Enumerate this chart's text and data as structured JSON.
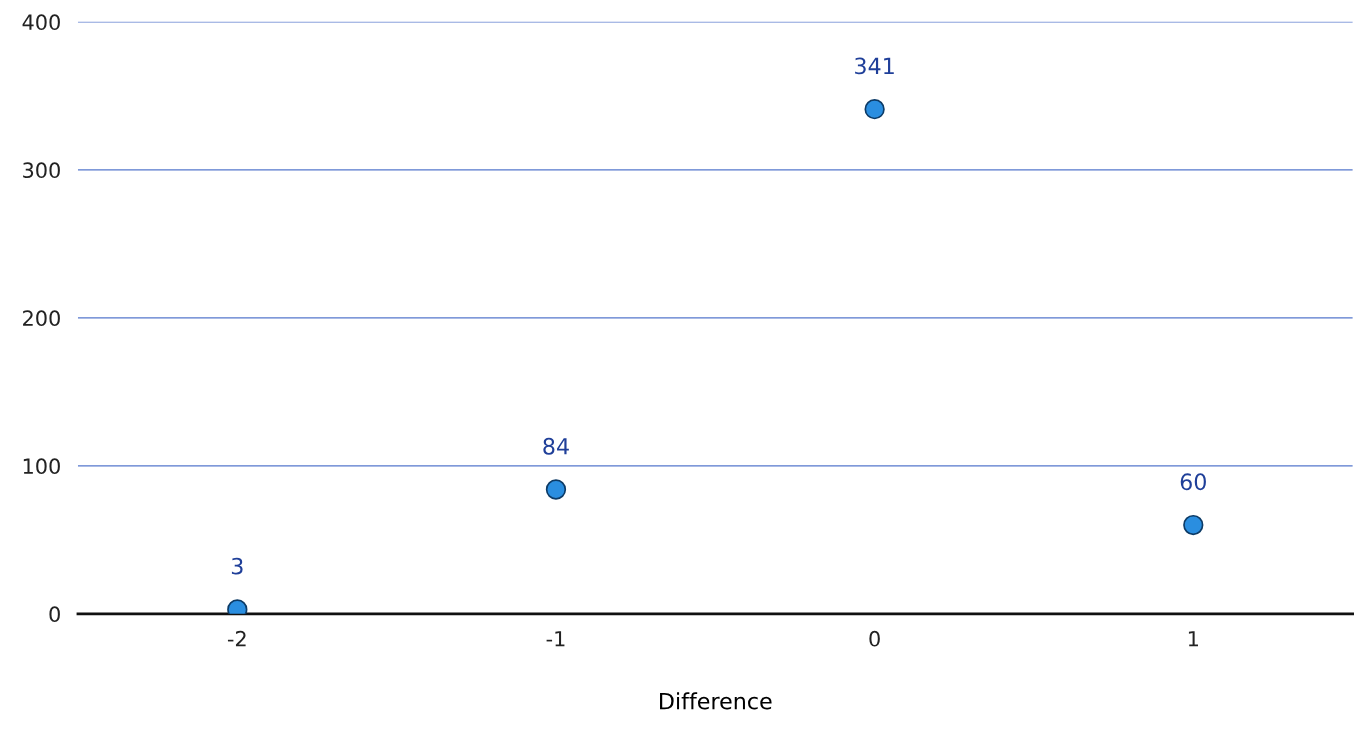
{
  "chart_data": {
    "type": "scatter",
    "xlabel": "Difference",
    "x": [
      -2,
      -1,
      0,
      1
    ],
    "series": [
      {
        "color": "#2a8ee0",
        "values": [
          3,
          84,
          341,
          60
        ]
      }
    ],
    "xlim": [
      -2.5,
      1.5
    ],
    "xticks": [
      -2,
      -1,
      0,
      1
    ],
    "ylim": [
      0,
      400
    ],
    "yticks": [
      0,
      100,
      200,
      300,
      400
    ],
    "grid": "y",
    "marker": "circle",
    "data_labels": true
  }
}
